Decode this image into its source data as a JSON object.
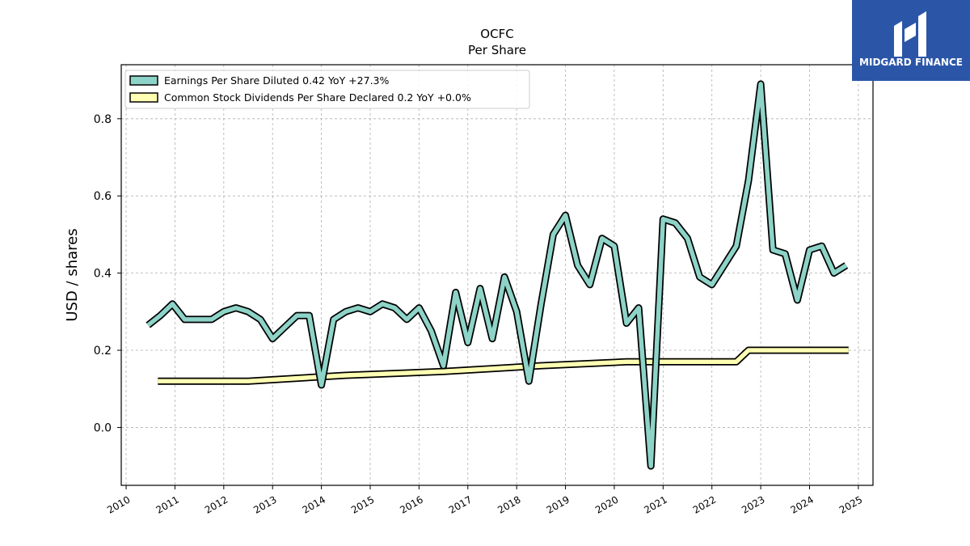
{
  "brand": {
    "name": "MIDGARD FINANCE",
    "bg_color": "#2b56a8"
  },
  "chart_data": {
    "type": "line",
    "title": "OCFC",
    "subtitle": "Per  Share",
    "xlabel": "",
    "ylabel": "USD / shares",
    "xlim": [
      2009.9,
      2025.3
    ],
    "ylim": [
      -0.15,
      0.94
    ],
    "x_ticks": [
      "2010",
      "2011",
      "2012",
      "2013",
      "2014",
      "2015",
      "2016",
      "2017",
      "2018",
      "2019",
      "2020",
      "2021",
      "2022",
      "2023",
      "2024",
      "2025"
    ],
    "y_ticks": [
      "0.0",
      "0.2",
      "0.4",
      "0.6",
      "0.8"
    ],
    "grid": true,
    "legend_placement": "top-left",
    "series": [
      {
        "name": "Earnings Per Share Diluted",
        "legend_label": "Earnings Per Share Diluted  0.42 YoY +27.3%",
        "color": "#8dd3c7",
        "x": [
          2010.45,
          2010.7,
          2010.95,
          2011.2,
          2011.5,
          2011.75,
          2012.0,
          2012.25,
          2012.5,
          2012.75,
          2013.0,
          2013.25,
          2013.5,
          2013.75,
          2014.0,
          2014.25,
          2014.5,
          2014.75,
          2015.0,
          2015.25,
          2015.5,
          2015.75,
          2016.0,
          2016.25,
          2016.5,
          2016.75,
          2017.0,
          2017.25,
          2017.5,
          2017.75,
          2018.0,
          2018.25,
          2018.5,
          2018.75,
          2019.0,
          2019.25,
          2019.5,
          2019.75,
          2020.0,
          2020.25,
          2020.5,
          2020.75,
          2021.0,
          2021.25,
          2021.5,
          2021.75,
          2022.0,
          2022.25,
          2022.5,
          2022.75,
          2023.0,
          2023.25,
          2023.5,
          2023.75,
          2024.0,
          2024.25,
          2024.5,
          2024.75
        ],
        "y": [
          0.265,
          0.29,
          0.32,
          0.28,
          0.28,
          0.28,
          0.3,
          0.31,
          0.3,
          0.28,
          0.23,
          0.26,
          0.29,
          0.29,
          0.11,
          0.28,
          0.3,
          0.31,
          0.3,
          0.32,
          0.31,
          0.28,
          0.31,
          0.25,
          0.16,
          0.35,
          0.22,
          0.36,
          0.23,
          0.39,
          0.3,
          0.12,
          0.32,
          0.5,
          0.55,
          0.42,
          0.37,
          0.49,
          0.47,
          0.27,
          0.31,
          -0.1,
          0.54,
          0.53,
          0.49,
          0.39,
          0.37,
          0.42,
          0.47,
          0.64,
          0.89,
          0.46,
          0.45,
          0.33,
          0.46,
          0.47,
          0.4,
          0.42
        ]
      },
      {
        "name": "Common Stock Dividends Per Share Declared",
        "legend_label": "Common Stock Dividends Per Share Declared  0.2 YoY +0.0%",
        "color": "#ffffb3",
        "x": [
          2010.65,
          2012.5,
          2014.5,
          2016.5,
          2018.5,
          2020.25,
          2021.25,
          2022.5,
          2022.75,
          2023.75,
          2024.8
        ],
        "y": [
          0.12,
          0.12,
          0.135,
          0.145,
          0.16,
          0.17,
          0.17,
          0.17,
          0.2,
          0.2,
          0.2
        ]
      }
    ]
  }
}
